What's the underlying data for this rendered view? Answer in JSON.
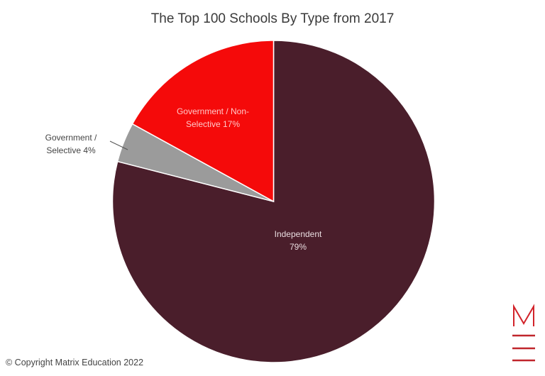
{
  "header": {
    "title": "The Top 100 Schools By Type from 2017"
  },
  "footer": {
    "copyright": "© Copyright Matrix Education 2022"
  },
  "logo": {
    "name": "matrix-education-logo",
    "letter": "M",
    "color": "#d2232a"
  },
  "labels": {
    "independent_line1": "Independent",
    "independent_line2": "79%",
    "nonselective_line1": "Government / Non-",
    "nonselective_line2": "Selective 17%",
    "selective_line1": "Government /",
    "selective_line2": "Selective 4%"
  },
  "chart_data": {
    "type": "pie",
    "title": "The Top 100 Schools By Type from 2017",
    "categories": [
      "Independent",
      "Government / Selective",
      "Government / Non-Selective"
    ],
    "values": [
      79,
      4,
      17
    ],
    "unit": "%",
    "colors": [
      "#4a1e2b",
      "#9b9b9b",
      "#f50a0a"
    ],
    "start_angle": "12 o'clock, clockwise",
    "legend": "none (inline data labels)"
  }
}
